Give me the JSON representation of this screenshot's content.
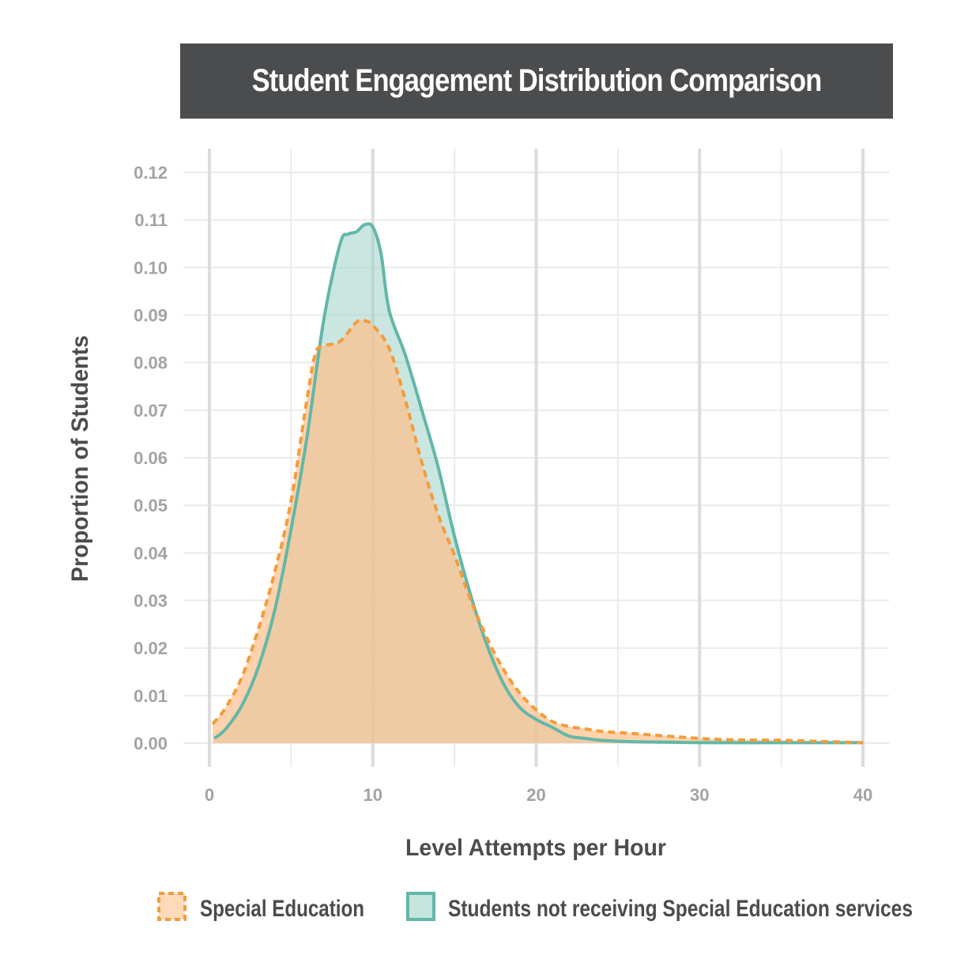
{
  "chart_data": {
    "type": "area",
    "title": "Student Engagement Distribution Comparison",
    "xlabel": "Level Attempts per Hour",
    "ylabel": "Proportion of Students",
    "xlim": [
      0,
      40
    ],
    "ylim": [
      0,
      0.12
    ],
    "x_ticks": [
      0,
      10,
      20,
      30,
      40
    ],
    "x_tick_labels": [
      "0",
      "10",
      "20",
      "30",
      "40"
    ],
    "y_ticks": [
      0,
      0.01,
      0.02,
      0.03,
      0.04,
      0.05,
      0.06,
      0.07,
      0.08,
      0.09,
      0.1,
      0.11,
      0.12
    ],
    "y_tick_labels": [
      "0.00",
      "0.01",
      "0.02",
      "0.03",
      "0.04",
      "0.05",
      "0.06",
      "0.07",
      "0.08",
      "0.09",
      "0.10",
      "0.11",
      "0.12"
    ],
    "grid": true,
    "legend_position": "bottom",
    "series": [
      {
        "name": "Special Education",
        "line_color": "#f39c3c",
        "fill_color": "#fdc08c",
        "line_style": "dashed",
        "points": [
          [
            0.2,
            0.004
          ],
          [
            1,
            0.0075
          ],
          [
            2,
            0.014
          ],
          [
            3,
            0.024
          ],
          [
            4,
            0.036
          ],
          [
            5,
            0.051
          ],
          [
            6,
            0.073
          ],
          [
            6.5,
            0.082
          ],
          [
            7,
            0.0835
          ],
          [
            8,
            0.0845
          ],
          [
            9,
            0.0885
          ],
          [
            9.5,
            0.0888
          ],
          [
            10,
            0.0878
          ],
          [
            11,
            0.083
          ],
          [
            12,
            0.072
          ],
          [
            13,
            0.059
          ],
          [
            14,
            0.048
          ],
          [
            15,
            0.0395
          ],
          [
            16,
            0.03
          ],
          [
            17,
            0.022
          ],
          [
            18,
            0.0155
          ],
          [
            19,
            0.0105
          ],
          [
            20,
            0.007
          ],
          [
            21,
            0.0045
          ],
          [
            22,
            0.0035
          ],
          [
            23,
            0.003
          ],
          [
            24,
            0.0025
          ],
          [
            26,
            0.002
          ],
          [
            28,
            0.0015
          ],
          [
            30,
            0.001
          ],
          [
            32,
            0.0007
          ],
          [
            35,
            0.0006
          ],
          [
            38,
            0.0003
          ],
          [
            40,
            0.0001
          ]
        ]
      },
      {
        "name": "Students not receiving Special Education services",
        "line_color": "#62b7a8",
        "fill_color": "#9ed2c8",
        "line_style": "solid",
        "points": [
          [
            0.3,
            0.001
          ],
          [
            1,
            0.003
          ],
          [
            2,
            0.008
          ],
          [
            3,
            0.016
          ],
          [
            4,
            0.028
          ],
          [
            5,
            0.045
          ],
          [
            6,
            0.065
          ],
          [
            7,
            0.089
          ],
          [
            8,
            0.105
          ],
          [
            8.5,
            0.107
          ],
          [
            9,
            0.1075
          ],
          [
            9.5,
            0.109
          ],
          [
            10,
            0.1085
          ],
          [
            10.5,
            0.103
          ],
          [
            11,
            0.091
          ],
          [
            12,
            0.0815
          ],
          [
            13,
            0.07
          ],
          [
            14,
            0.058
          ],
          [
            15,
            0.0435
          ],
          [
            16,
            0.031
          ],
          [
            17,
            0.0205
          ],
          [
            18,
            0.0125
          ],
          [
            19,
            0.0075
          ],
          [
            20,
            0.005
          ],
          [
            21,
            0.0033
          ],
          [
            22,
            0.0015
          ],
          [
            23,
            0.001
          ],
          [
            24,
            0.0006
          ],
          [
            26,
            0.0003
          ],
          [
            30,
            0.0001
          ],
          [
            35,
            0.0001
          ],
          [
            40,
            0.0001
          ]
        ]
      }
    ]
  },
  "colors": {
    "title_bg": "#4b4c4e",
    "title_text": "#ffffff",
    "grid_major": "#dcdcdc",
    "grid_minor": "#ebebeb",
    "tick_label": "#a3a3a3",
    "axis_label": "#4b4c4e",
    "overlap_fill": "#ddc28e"
  }
}
